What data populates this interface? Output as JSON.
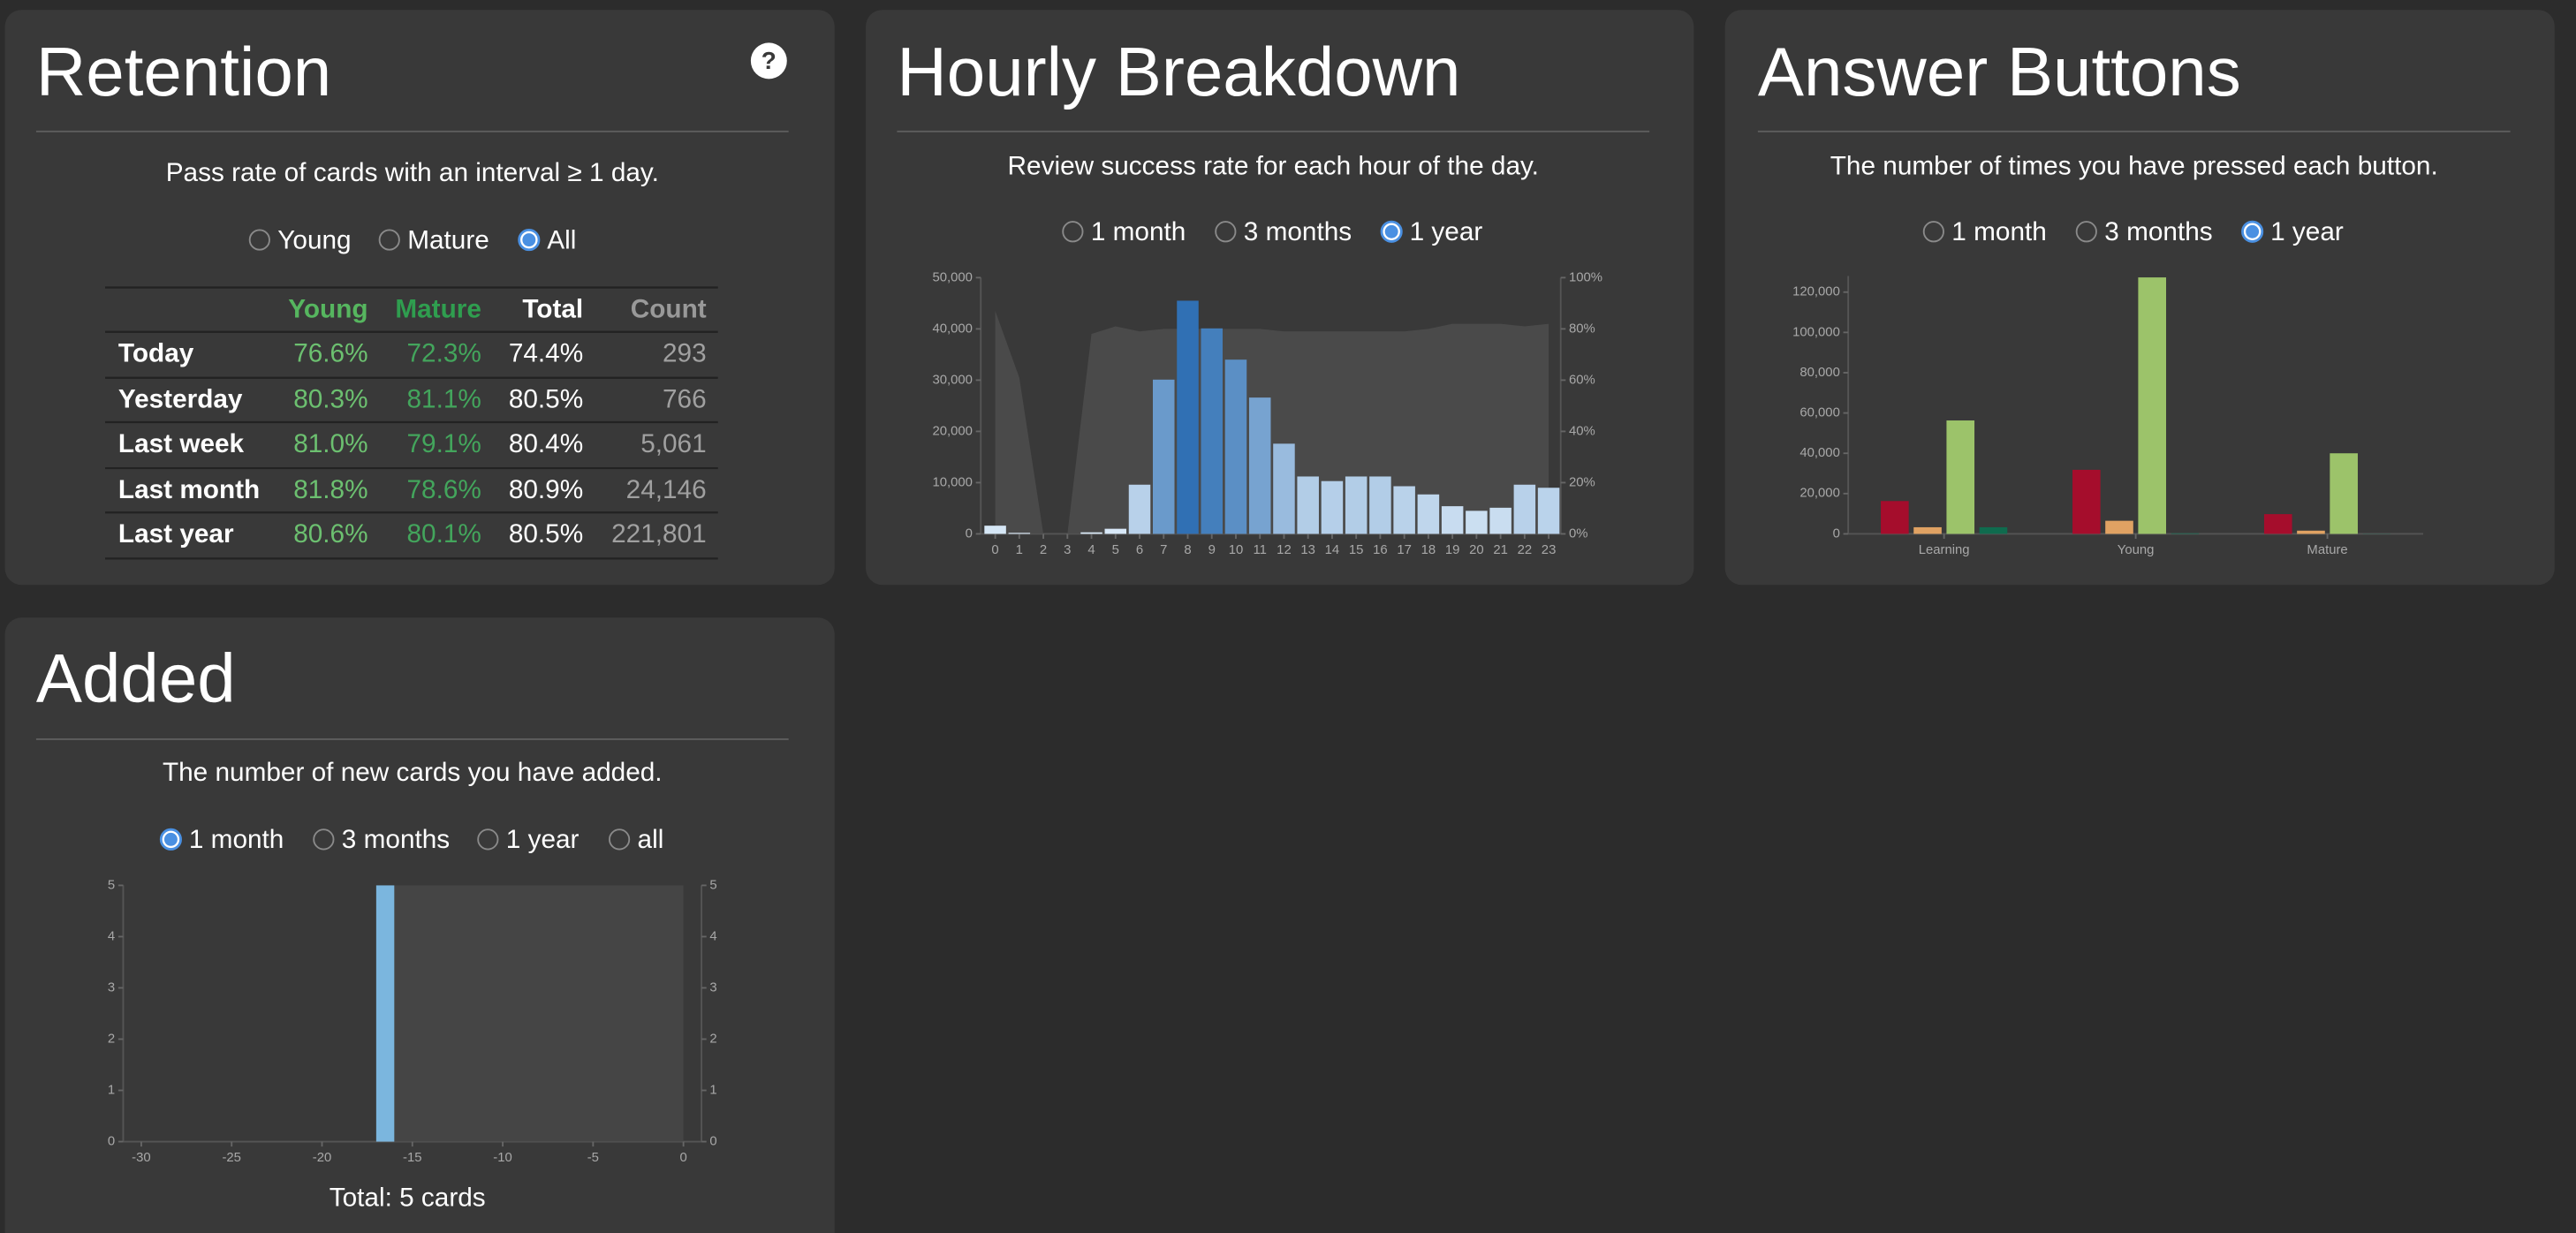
{
  "retention": {
    "title": "Retention",
    "help": "?",
    "subtitle": "Pass rate of cards with an interval ≥ 1 day.",
    "options": [
      "Young",
      "Mature",
      "All"
    ],
    "selected": 2,
    "table": {
      "header": [
        "Young",
        "Mature",
        "Total",
        "Count"
      ],
      "rows": [
        [
          "Today",
          "76.6%",
          "72.3%",
          "74.4%",
          "293"
        ],
        [
          "Yesterday",
          "80.3%",
          "81.1%",
          "80.5%",
          "766"
        ],
        [
          "Last week",
          "81.0%",
          "79.1%",
          "80.4%",
          "5,061"
        ],
        [
          "Last month",
          "81.8%",
          "78.6%",
          "80.9%",
          "24,146"
        ],
        [
          "Last year",
          "80.6%",
          "80.1%",
          "80.5%",
          "221,801"
        ]
      ]
    }
  },
  "hourly": {
    "title": "Hourly Breakdown",
    "subtitle": "Review success rate for each hour of the day.",
    "options": [
      "1 month",
      "3 months",
      "1 year"
    ],
    "selected": 2,
    "chart_data": {
      "type": "bar",
      "x": [
        0,
        1,
        2,
        3,
        4,
        5,
        6,
        7,
        8,
        9,
        10,
        11,
        12,
        13,
        14,
        15,
        16,
        17,
        18,
        19,
        20,
        21,
        22,
        23
      ],
      "series": [
        {
          "type": "area",
          "axis": "y2",
          "color": "#4d4d4d",
          "values": [
            87,
            61,
            0,
            0,
            78,
            81,
            79,
            80,
            80,
            80,
            80,
            80,
            79,
            79,
            79,
            79,
            79,
            79,
            80,
            82,
            82,
            82,
            81,
            82
          ]
        },
        {
          "type": "bar",
          "color_range": [
            "#dcebf8",
            "#1f64ad"
          ],
          "values": [
            1600,
            200,
            0,
            0,
            300,
            1000,
            9600,
            30100,
            45500,
            40100,
            34000,
            26600,
            17600,
            11200,
            10300,
            11200,
            11200,
            9300,
            7700,
            5400,
            4500,
            5100,
            9600,
            9000
          ]
        }
      ],
      "xlim": [
        -0.6,
        23.5
      ],
      "xticks": [
        0,
        1,
        2,
        3,
        4,
        5,
        6,
        7,
        8,
        9,
        10,
        11,
        12,
        13,
        14,
        15,
        16,
        17,
        18,
        19,
        20,
        21,
        22,
        23
      ],
      "ylim": [
        0,
        50000
      ],
      "yticks": [
        0,
        {
          "value": 10000,
          "label": "10,000"
        },
        {
          "value": 20000,
          "label": "20,000"
        },
        {
          "value": 30000,
          "label": "30,000"
        },
        {
          "value": 40000,
          "label": "40,000"
        },
        {
          "value": 50000,
          "label": "50,000"
        }
      ],
      "y2lim": [
        0,
        100
      ],
      "y2ticks": [
        {
          "value": 0,
          "label": "0%"
        },
        {
          "value": 20,
          "label": "20%"
        },
        {
          "value": 40,
          "label": "40%"
        },
        {
          "value": 60,
          "label": "60%"
        },
        {
          "value": 80,
          "label": "80%"
        },
        {
          "value": 100,
          "label": "100%"
        }
      ]
    }
  },
  "answer_buttons": {
    "title": "Answer Buttons",
    "subtitle": "The number of times you have pressed each button.",
    "options": [
      "1 month",
      "3 months",
      "1 year"
    ],
    "selected": 2,
    "chart_data": {
      "type": "grouped_bar",
      "categories": [
        "Learning",
        "Young",
        "Mature"
      ],
      "series": [
        {
          "color": "#a50d2c",
          "values": [
            16300,
            31800,
            9800
          ]
        },
        {
          "color": "#e0a263",
          "values": [
            3300,
            6500,
            1600
          ]
        },
        {
          "color": "#9cc36a",
          "values": [
            56300,
            127300,
            40000
          ]
        },
        {
          "color": "#0f6b4e",
          "values": [
            3300,
            300,
            100
          ]
        }
      ],
      "ylim": [
        0,
        128000
      ],
      "yticks": [
        0,
        {
          "value": 20000,
          "label": "20,000"
        },
        {
          "value": 40000,
          "label": "40,000"
        },
        {
          "value": 60000,
          "label": "60,000"
        },
        {
          "value": 80000,
          "label": "80,000"
        },
        {
          "value": 100000,
          "label": "100,000"
        },
        {
          "value": 120000,
          "label": "120,000"
        }
      ]
    }
  },
  "added": {
    "title": "Added",
    "subtitle": "The number of new cards you have added.",
    "options": [
      "1 month",
      "3 months",
      "1 year",
      "all"
    ],
    "selected": 0,
    "total": "Total: 5 cards",
    "chart_data": {
      "type": "bar",
      "series": [
        {
          "type": "area",
          "axis": "y2",
          "color": "#484848",
          "x": [
            -17,
            -16,
            0
          ],
          "values": [
            0,
            5,
            5
          ]
        },
        {
          "type": "bar",
          "color": "#7bb6de",
          "x": [
            -17
          ],
          "values": [
            5
          ]
        }
      ],
      "xlim": [
        -31,
        1
      ],
      "xticks": [
        -30,
        -25,
        -20,
        -15,
        -10,
        -5,
        0
      ],
      "ylim": [
        0,
        5
      ],
      "yticks": [
        0,
        1,
        2,
        3,
        4,
        5
      ],
      "y2lim": [
        0,
        5
      ],
      "y2ticks": [
        0,
        1,
        2,
        3,
        4,
        5
      ]
    }
  }
}
